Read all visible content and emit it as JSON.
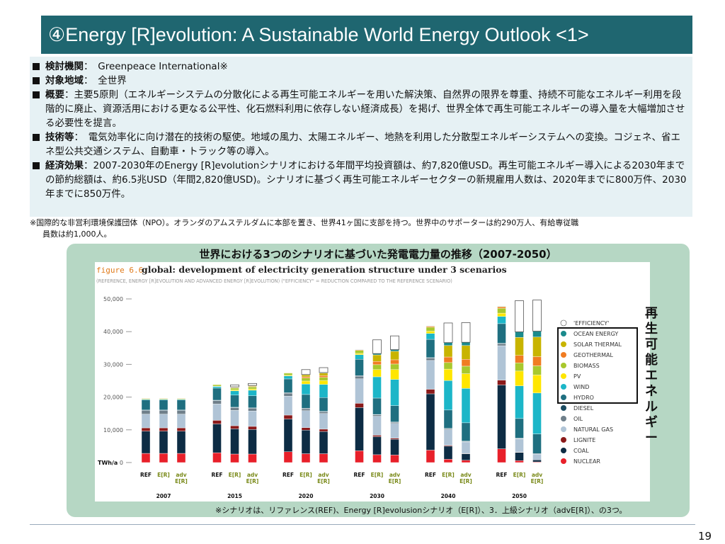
{
  "title": "④Energy [R]evolution: A Sustainable World Energy Outlook <1>",
  "bullets": [
    {
      "label": "検討機関",
      "text": "：　Greenpeace International※"
    },
    {
      "label": "対象地域",
      "text": "：　全世界"
    },
    {
      "label": "概要",
      "text": "：主要5原則（エネルギーシステムの分散化による再生可能エネルギーを用いた解決策、自然界の限界を尊重、持続不可能なエネルギー利用を段階的に廃止、資源活用における更なる公平性、化石燃料利用に依存しない経済成長）を掲げ、世界全体で再生可能エネルギーの導入量を大幅増加させる必要性を提言。"
    },
    {
      "label": "技術等",
      "text": "：　電気効率化に向け潜在的技術の駆使。地域の風力、太陽エネルギー、地熱を利用した分散型エネルギーシステムへの変換。コジェネ、省エネ型公共交通システム、自動車・トラック等の導入。"
    },
    {
      "label": "経済効果",
      "text": "：2007-2030年のEnergy [R]evolutionシナリオにおける年間平均投資額は、約7,820億USD。再生可能エネルギー導入による2030年までの節約総額は、約6.5兆USD（年間2,820億USD)。シナリオに基づく再生可能エネルギーセクターの新規雇用人数は、2020年までに800万件、2030年までに850万件。"
    }
  ],
  "note_line1": "※国際的な非営利環境保護団体（NPO）。オランダのアムステルダムに本部を置き、世界41ヶ国に支部を持つ。世界中のサポーターは約290万人、有給専従職",
  "note_line2": "員数は約1,000人。",
  "chart_heading": "世界における3つのシナリオに基づいた発電電力量の推移（2007-2050）",
  "vertical_label": "再生可能エネルギー",
  "caption": "※シナリオは、リファレンス(REF)、Energy [R]evolusionシナリオ（E[R]）、3．上級シナリオ（advE[R]）、の3つ。",
  "page_number": "19",
  "chart_data": {
    "type": "bar",
    "stacked": true,
    "figure_label": "figure 6.6:",
    "title": "global: development of electricity generation structure under 3 scenarios",
    "subtitle": "(REFERENCE, ENERGY [R]EVOLUTION AND ADVANCED ENERGY [R]EVOLUTION) (\"EFFICIENCY\" = REDUCTION COMPARED TO THE REFERENCE SCENARIO)",
    "ylabel": "TWh/a",
    "ylim": [
      0,
      50000
    ],
    "yticks": [
      "0",
      "10,000",
      "20,000",
      "30,000",
      "40,000",
      "50,000"
    ],
    "ytick_values": [
      0,
      10000,
      20000,
      30000,
      40000,
      50000
    ],
    "years": [
      "2007",
      "2015",
      "2020",
      "2030",
      "2040",
      "2050"
    ],
    "scenario_labels": [
      "REF",
      "E[R]",
      "adv\nE[R]"
    ],
    "scenario_colors": [
      "#111111",
      "#7a8a1a",
      "#7a8a1a"
    ],
    "categories": [
      "2007 REF",
      "2007 E[R]",
      "2007 adv E[R]",
      "2015 REF",
      "2015 E[R]",
      "2015 adv E[R]",
      "2020 REF",
      "2020 E[R]",
      "2020 adv E[R]",
      "2030 REF",
      "2030 E[R]",
      "2030 adv E[R]",
      "2040 REF",
      "2040 E[R]",
      "2040 adv E[R]",
      "2050 REF",
      "2050 E[R]",
      "2050 adv E[R]"
    ],
    "series": [
      {
        "name": "NUCLEAR",
        "color": "#e8202a",
        "values": [
          2800,
          2800,
          2800,
          3000,
          2600,
          2600,
          3300,
          2700,
          2700,
          3600,
          2400,
          2300,
          3800,
          1000,
          700,
          4200,
          600,
          200
        ]
      },
      {
        "name": "COAL",
        "color": "#0d2c44",
        "values": [
          6800,
          6800,
          6800,
          8800,
          7700,
          7500,
          10000,
          7200,
          6800,
          13200,
          5500,
          4800,
          17200,
          4000,
          2000,
          19500,
          2500,
          600
        ]
      },
      {
        "name": "LIGNITE",
        "color": "#8b1a1a",
        "values": [
          1000,
          1000,
          1000,
          1100,
          950,
          950,
          1200,
          750,
          700,
          1300,
          450,
          350,
          1400,
          250,
          100,
          1500,
          100,
          0
        ]
      },
      {
        "name": "NATURAL GAS",
        "color": "#b0c4d6",
        "values": [
          4200,
          4200,
          4200,
          5000,
          4700,
          4700,
          5800,
          5200,
          4800,
          7500,
          5800,
          4500,
          8800,
          4800,
          3500,
          10500,
          4000,
          1800
        ]
      },
      {
        "name": "OIL",
        "color": "#6f7f8a",
        "values": [
          1100,
          1100,
          1100,
          1000,
          800,
          800,
          900,
          600,
          500,
          800,
          400,
          300,
          700,
          250,
          100,
          600,
          100,
          0
        ]
      },
      {
        "name": "DIESEL",
        "color": "#1a4a60",
        "values": [
          150,
          150,
          150,
          150,
          150,
          150,
          150,
          150,
          150,
          150,
          150,
          150,
          150,
          150,
          150,
          150,
          150,
          150
        ]
      },
      {
        "name": "HYDRO",
        "color": "#1f6f80",
        "values": [
          3100,
          3100,
          3100,
          3700,
          3700,
          3700,
          4200,
          4200,
          4200,
          5000,
          5000,
          5000,
          5600,
          5600,
          5600,
          6000,
          6000,
          6000
        ]
      },
      {
        "name": "WIND",
        "color": "#1cb6c8",
        "values": [
          200,
          200,
          200,
          500,
          1300,
          1700,
          900,
          3200,
          4000,
          1400,
          6500,
          8000,
          1800,
          9000,
          10500,
          2200,
          10000,
          12500
        ]
      },
      {
        "name": "PV",
        "color": "#ffe600",
        "values": [
          0,
          0,
          0,
          80,
          300,
          400,
          200,
          900,
          1200,
          400,
          2200,
          3000,
          700,
          3500,
          4500,
          1000,
          4500,
          5500
        ]
      },
      {
        "name": "BIOMASS",
        "color": "#a8c82d",
        "values": [
          250,
          250,
          250,
          450,
          550,
          600,
          650,
          900,
          1000,
          900,
          1500,
          1700,
          1200,
          2000,
          2300,
          1500,
          2500,
          2800
        ]
      },
      {
        "name": "GEOTHERMAL",
        "color": "#f07c22",
        "values": [
          50,
          50,
          50,
          80,
          150,
          180,
          120,
          400,
          500,
          200,
          1000,
          1300,
          300,
          1700,
          2100,
          400,
          2300,
          2800
        ]
      },
      {
        "name": "SOLAR THERMAL",
        "color": "#c8b400",
        "values": [
          0,
          0,
          0,
          30,
          200,
          250,
          50,
          600,
          800,
          100,
          2000,
          2600,
          150,
          3500,
          4200,
          200,
          5500,
          6000
        ]
      },
      {
        "name": "OCEAN ENERGY",
        "color": "#1b8a8c",
        "values": [
          0,
          0,
          0,
          0,
          30,
          40,
          0,
          100,
          150,
          20,
          400,
          500,
          30,
          900,
          1000,
          50,
          1700,
          1800
        ]
      },
      {
        "name": "'EFFICIENCY'",
        "color": "#ffffff",
        "values": [
          0,
          0,
          0,
          0,
          600,
          600,
          0,
          1500,
          1500,
          0,
          4200,
          4200,
          0,
          6000,
          6000,
          0,
          9500,
          9500
        ]
      }
    ],
    "legend_order": [
      "'EFFICIENCY'",
      "OCEAN ENERGY",
      "SOLAR THERMAL",
      "GEOTHERMAL",
      "BIOMASS",
      "PV",
      "WIND",
      "HYDRO",
      "DIESEL",
      "OIL",
      "NATURAL GAS",
      "LIGNITE",
      "COAL",
      "NUCLEAR"
    ],
    "legend_placement": "right",
    "renewables_highlight": [
      "OCEAN ENERGY",
      "SOLAR THERMAL",
      "GEOTHERMAL",
      "BIOMASS",
      "PV",
      "WIND",
      "HYDRO"
    ],
    "grid": false
  }
}
